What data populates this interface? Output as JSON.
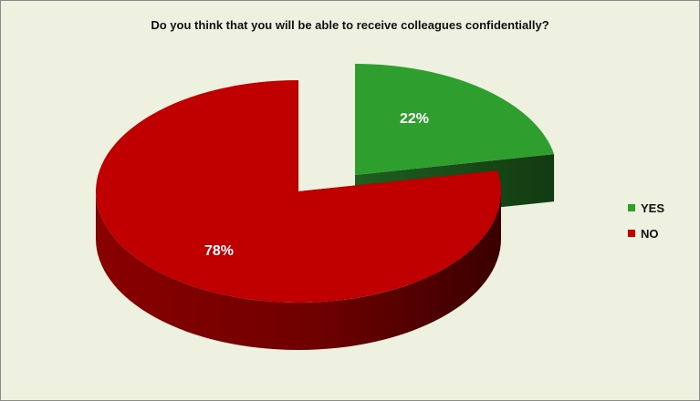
{
  "chart_data": {
    "type": "pie",
    "title": "Do you think that you will be able to receive colleagues confidentially?",
    "labels": [
      "YES",
      "NO"
    ],
    "values": [
      22,
      78
    ],
    "data_labels": [
      "22%",
      "78%"
    ],
    "colors": [
      "#2e9e2e",
      "#c00000"
    ],
    "exploded": "YES",
    "style": "3d",
    "legend_position": "right"
  }
}
